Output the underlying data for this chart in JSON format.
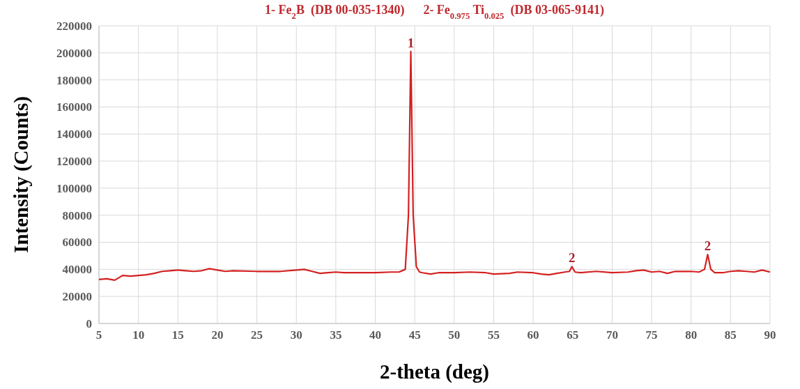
{
  "chart_data": {
    "type": "line",
    "title": "1- Fe$_{2}$B  (DB 00-035-1340)      2- Fe$_{0.975}$ Ti$_{0.025}$  (DB 03-065-9141)",
    "xlabel": "2-theta (deg)",
    "ylabel": "Intensity (Counts)",
    "xlim": [
      5,
      90
    ],
    "xticks": [
      5,
      10,
      15,
      20,
      25,
      30,
      35,
      40,
      45,
      50,
      55,
      60,
      65,
      70,
      75,
      80,
      85,
      90
    ],
    "ylim": [
      0,
      220000
    ],
    "yticks": [
      0,
      20000,
      40000,
      60000,
      80000,
      100000,
      120000,
      140000,
      160000,
      180000,
      200000,
      220000
    ],
    "grid": true,
    "marker": "none",
    "line_style": "solid",
    "series": [
      {
        "color": "#d42020",
        "x": [
          5,
          6,
          7,
          8,
          9,
          10,
          11,
          12,
          13,
          14,
          15,
          16,
          17,
          18,
          19,
          20,
          21,
          22,
          25,
          28,
          30,
          31,
          32,
          33,
          34,
          35,
          36,
          38,
          40,
          42,
          43,
          43.8,
          44.2,
          44.5,
          44.8,
          45.2,
          45.6,
          46,
          47,
          48,
          50,
          52,
          54,
          55,
          57,
          58,
          60,
          61,
          62,
          63,
          64,
          64.6,
          64.9,
          65.3,
          66,
          68,
          70,
          72,
          73,
          74,
          75,
          76,
          77,
          78,
          80,
          81,
          81.7,
          82.1,
          82.5,
          83,
          84,
          85,
          86,
          87,
          88,
          89,
          90
        ],
        "values": [
          32500,
          33000,
          32000,
          35500,
          35000,
          35500,
          36000,
          37000,
          38500,
          39000,
          39500,
          39000,
          38500,
          39000,
          40500,
          39500,
          38500,
          39000,
          38500,
          38500,
          39500,
          40000,
          38500,
          37000,
          37500,
          38000,
          37500,
          37500,
          37500,
          38000,
          38000,
          40000,
          80000,
          201000,
          80000,
          42000,
          38000,
          37500,
          36500,
          37500,
          37500,
          38000,
          37500,
          36500,
          37000,
          38000,
          37500,
          36500,
          36000,
          37000,
          38000,
          38500,
          42000,
          38000,
          37500,
          38500,
          37500,
          38000,
          39000,
          39500,
          38000,
          38500,
          37000,
          38500,
          38500,
          38000,
          40000,
          51000,
          40000,
          37500,
          37500,
          38500,
          39000,
          38500,
          38000,
          39500,
          38000
        ]
      }
    ],
    "annotations": [
      {
        "text": "1",
        "x": 44.5,
        "y": 201000
      },
      {
        "text": "2",
        "x": 64.9,
        "y": 42000
      },
      {
        "text": "2",
        "x": 82.1,
        "y": 51000
      }
    ]
  }
}
